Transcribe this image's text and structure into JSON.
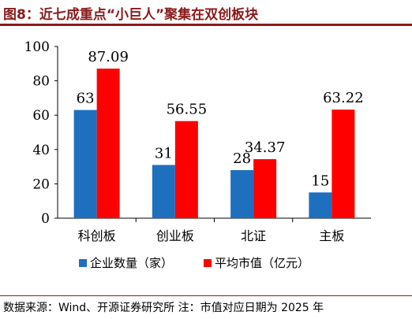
{
  "figure": {
    "title": "图8：近七成重点“小巨人”聚集在双创板块",
    "source": "数据来源：Wind、开源证券研究所  注：市值对应日期为 2025 年"
  },
  "chart_data": {
    "type": "bar",
    "categories": [
      "科创板",
      "创业板",
      "北证",
      "主板"
    ],
    "series": [
      {
        "name": "企业数量（家）",
        "values": [
          63,
          31,
          28,
          15
        ],
        "color": "#1f6fbf",
        "labels": [
          "63",
          "31",
          "28",
          "15"
        ]
      },
      {
        "name": "平均市值（亿元）",
        "values": [
          87.09,
          56.55,
          34.37,
          63.22
        ],
        "color": "#ff0000",
        "labels": [
          "87.09",
          "56.55",
          "34.37",
          "63.22"
        ]
      }
    ],
    "ylim": [
      0,
      100
    ],
    "yticks": [
      "0",
      "20",
      "40",
      "60",
      "80",
      "100"
    ],
    "grid": false,
    "legend_position": "bottom"
  }
}
